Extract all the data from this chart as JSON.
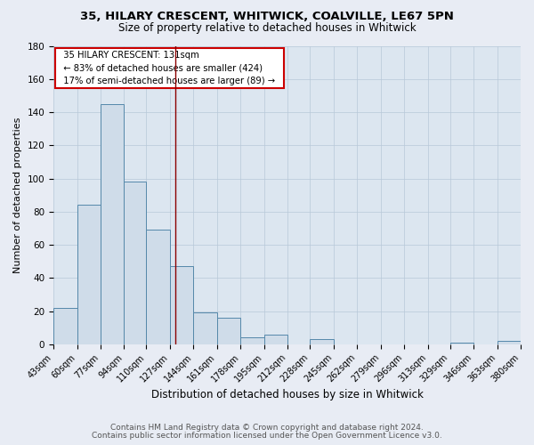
{
  "title1": "35, HILARY CRESCENT, WHITWICK, COALVILLE, LE67 5PN",
  "title2": "Size of property relative to detached houses in Whitwick",
  "xlabel": "Distribution of detached houses by size in Whitwick",
  "ylabel": "Number of detached properties",
  "bar_edges": [
    43,
    60,
    77,
    94,
    110,
    127,
    144,
    161,
    178,
    195,
    212,
    228,
    245,
    262,
    279,
    296,
    313,
    329,
    346,
    363,
    380
  ],
  "bar_heights": [
    22,
    84,
    145,
    98,
    69,
    47,
    19,
    16,
    4,
    6,
    0,
    3,
    0,
    0,
    0,
    0,
    0,
    1,
    0,
    2
  ],
  "bar_color": "#cfdce9",
  "bar_edgecolor": "#5588aa",
  "property_line_x": 131,
  "property_line_color": "#8b0000",
  "annotation_title": "35 HILARY CRESCENT: 131sqm",
  "annotation_line1": "← 83% of detached houses are smaller (424)",
  "annotation_line2": "17% of semi-detached houses are larger (89) →",
  "annotation_box_facecolor": "white",
  "annotation_box_edgecolor": "#cc0000",
  "ylim": [
    0,
    180
  ],
  "yticks": [
    0,
    20,
    40,
    60,
    80,
    100,
    120,
    140,
    160,
    180
  ],
  "tick_labels": [
    "43sqm",
    "60sqm",
    "77sqm",
    "94sqm",
    "110sqm",
    "127sqm",
    "144sqm",
    "161sqm",
    "178sqm",
    "195sqm",
    "212sqm",
    "228sqm",
    "245sqm",
    "262sqm",
    "279sqm",
    "296sqm",
    "313sqm",
    "329sqm",
    "346sqm",
    "363sqm",
    "380sqm"
  ],
  "footer1": "Contains HM Land Registry data © Crown copyright and database right 2024.",
  "footer2": "Contains public sector information licensed under the Open Government Licence v3.0.",
  "bg_color": "#e8ecf4",
  "plot_bg_color": "#dce6f0",
  "grid_color": "#b8c8d8",
  "title1_fontsize": 9.5,
  "title2_fontsize": 8.5,
  "xlabel_fontsize": 8.5,
  "ylabel_fontsize": 8,
  "tick_fontsize": 7,
  "ytick_fontsize": 7.5,
  "footer_fontsize": 6.5
}
